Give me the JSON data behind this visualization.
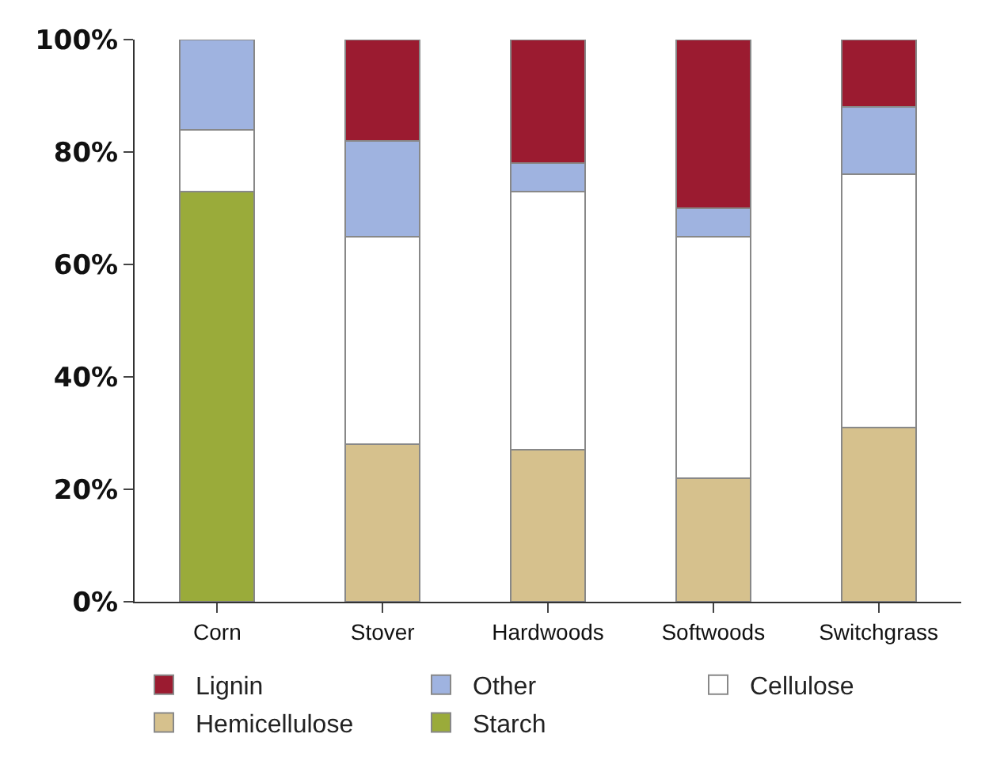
{
  "chart_data": {
    "type": "bar",
    "stacked": true,
    "categories": [
      "Corn",
      "Stover",
      "Hardwoods",
      "Softwoods",
      "Switchgrass"
    ],
    "series": [
      {
        "name": "Starch",
        "color": "#9aab3a",
        "values": [
          73,
          null,
          null,
          null,
          null
        ]
      },
      {
        "name": "Hemicellulose",
        "color": "#d6c18d",
        "values": [
          null,
          28,
          27,
          22,
          31
        ]
      },
      {
        "name": "Cellulose",
        "color": "#ffffff",
        "values": [
          11,
          37,
          46,
          43,
          45
        ]
      },
      {
        "name": "Other",
        "color": "#9fb3e0",
        "values": [
          16,
          17,
          5,
          5,
          12
        ]
      },
      {
        "name": "Lignin",
        "color": "#9b1b30",
        "values": [
          null,
          18,
          22,
          30,
          12
        ]
      }
    ],
    "ylim": [
      0,
      100
    ],
    "yticks": [
      {
        "value": 0,
        "label": "0%"
      },
      {
        "value": 20,
        "label": "20%"
      },
      {
        "value": 40,
        "label": "40%"
      },
      {
        "value": 60,
        "label": "60%"
      },
      {
        "value": 80,
        "label": "80%"
      },
      {
        "value": 100,
        "label": "100%"
      }
    ],
    "legend": "bottom"
  }
}
